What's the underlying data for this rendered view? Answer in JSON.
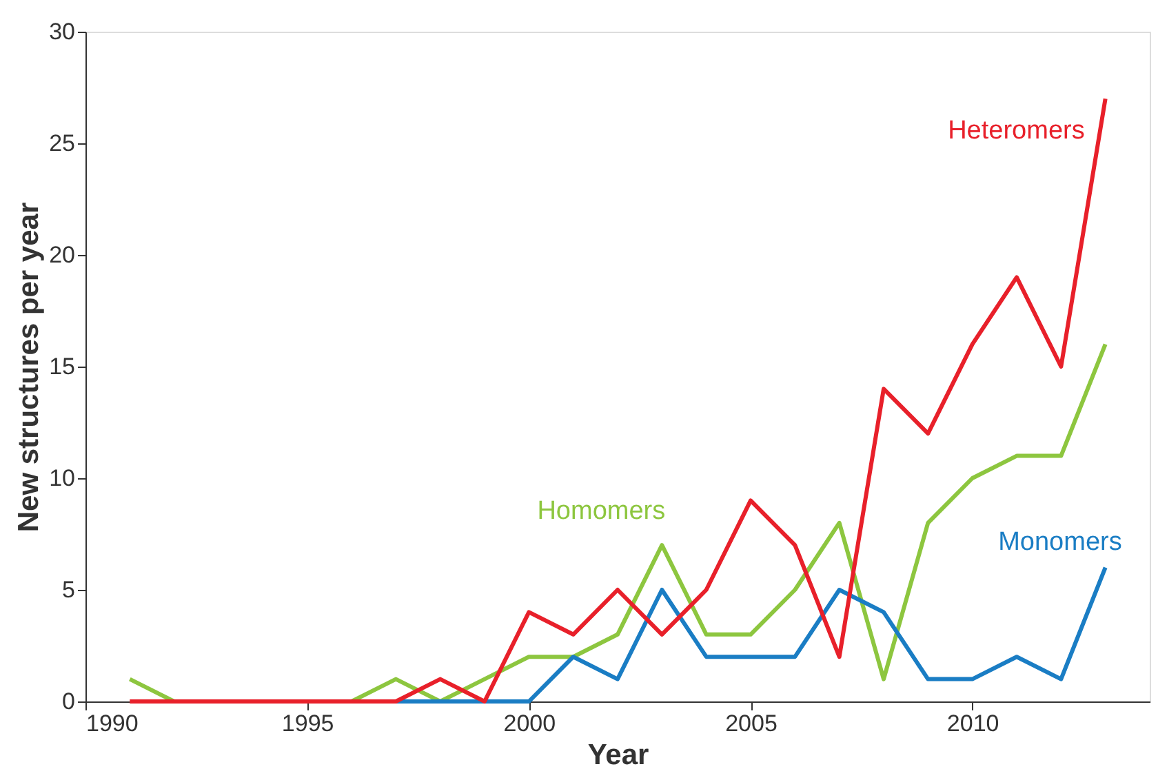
{
  "chart_data": {
    "type": "line",
    "xlabel": "Year",
    "ylabel": "New structures per year",
    "x": [
      1991,
      1992,
      1993,
      1994,
      1995,
      1996,
      1997,
      1998,
      1999,
      2000,
      2001,
      2002,
      2003,
      2004,
      2005,
      2006,
      2007,
      2008,
      2009,
      2010,
      2011,
      2012,
      2013
    ],
    "series": [
      {
        "name": "Homomers",
        "color": "#8dc63f",
        "values": [
          1,
          0,
          0,
          0,
          0,
          0,
          1,
          0,
          1,
          2,
          2,
          3,
          7,
          3,
          3,
          5,
          8,
          1,
          8,
          10,
          11,
          11,
          16
        ]
      },
      {
        "name": "Monomers",
        "color": "#1a7dc4",
        "values": [
          null,
          null,
          null,
          null,
          null,
          0,
          0,
          0,
          0,
          0,
          2,
          1,
          5,
          2,
          2,
          2,
          5,
          4,
          1,
          1,
          2,
          1,
          6
        ]
      },
      {
        "name": "Heteromers",
        "color": "#e8202a",
        "values": [
          0,
          0,
          0,
          0,
          0,
          0,
          0,
          1,
          0,
          4,
          3,
          5,
          3,
          5,
          9,
          7,
          2,
          14,
          12,
          16,
          19,
          15,
          27
        ]
      }
    ],
    "xlim": [
      1990,
      2014
    ],
    "xticks": [
      1990,
      1995,
      2000,
      2005,
      2010
    ],
    "ylim": [
      0,
      30
    ],
    "yticks": [
      0,
      5,
      10,
      15,
      20,
      25,
      30
    ],
    "legend": false,
    "grid": false,
    "marker": "none",
    "line_style": "solid"
  }
}
